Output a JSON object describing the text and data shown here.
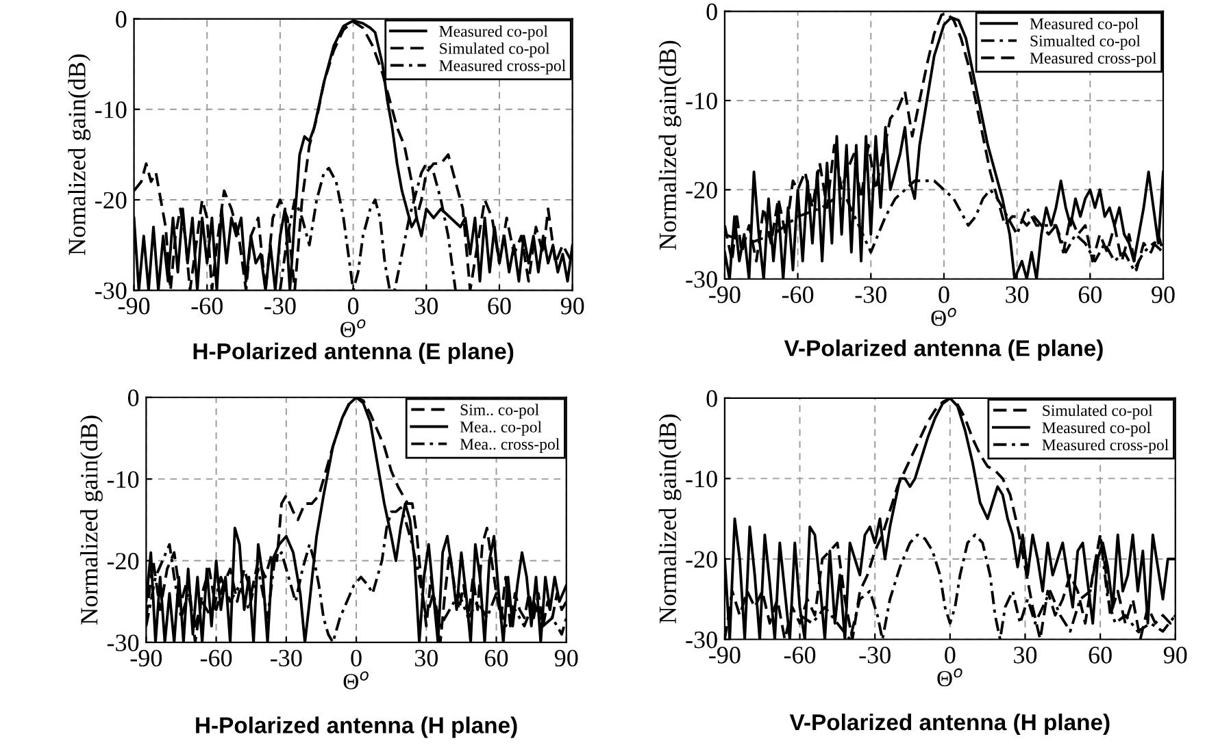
{
  "chart_data": [
    {
      "type": "line",
      "title": "H-Polarized antenna (E plane)",
      "xlabel": "Θ$^{o}$",
      "ylabel": "Nomalized gain(dB)",
      "xlim": [
        -90,
        90
      ],
      "ylim": [
        -30,
        0
      ],
      "xticks": [
        -90,
        -60,
        -30,
        0,
        30,
        60,
        90
      ],
      "yticks": [
        -30,
        -20,
        -10,
        0
      ],
      "grid": true,
      "legend": "top right",
      "series": [
        {
          "name": "Measured co-pol",
          "color": "#000000",
          "line_style": "solid",
          "x": [
            -90,
            -88,
            -86,
            -84,
            -82,
            -80,
            -78,
            -76,
            -74,
            -72,
            -70,
            -68,
            -66,
            -64,
            -62,
            -60,
            -58,
            -56,
            -54,
            -52,
            -50,
            -48,
            -46,
            -44,
            -42,
            -40,
            -38,
            -36,
            -34,
            -32,
            -30,
            -28,
            -26,
            -24,
            -22,
            -20,
            -18,
            -16,
            -12,
            -8,
            -4,
            0,
            4,
            7,
            9,
            12,
            14,
            16,
            18,
            20,
            22,
            24,
            26,
            28,
            30,
            33,
            36,
            40,
            44,
            46,
            48,
            50,
            52,
            54,
            56,
            58,
            60,
            62,
            64,
            66,
            68,
            70,
            72,
            74,
            76,
            78,
            80,
            82,
            84,
            86,
            88,
            90
          ],
          "values": [
            -22,
            -30,
            -24,
            -30,
            -23,
            -30,
            -24,
            -29,
            -22,
            -28,
            -21,
            -27,
            -22,
            -30,
            -22,
            -27,
            -22,
            -30,
            -21,
            -27,
            -22,
            -24,
            -22,
            -29,
            -24,
            -27,
            -26,
            -30,
            -25,
            -30,
            -24,
            -21,
            -30,
            -22,
            -15,
            -13,
            -13.5,
            -12,
            -7,
            -3,
            -0.8,
            -0.2,
            -0.5,
            -1,
            -1.5,
            -5,
            -9,
            -12,
            -16,
            -19,
            -21,
            -23,
            -22,
            -24,
            -21,
            -22,
            -21,
            -22,
            -23,
            -22,
            -26,
            -22,
            -29,
            -22,
            -28,
            -23,
            -27,
            -24,
            -28,
            -25,
            -29,
            -24,
            -27,
            -24,
            -28,
            -24,
            -27,
            -25,
            -28,
            -26,
            -29,
            -25
          ]
        },
        {
          "name": "Simulated co-pol",
          "color": "#000000",
          "line_style": "dashed",
          "x": [
            -90,
            -87,
            -85,
            -83,
            -81,
            -79,
            -77,
            -75,
            -73,
            -71,
            -69,
            -67,
            -65,
            -62,
            -60,
            -58,
            -56,
            -53,
            -50,
            -47,
            -44,
            -42,
            -39,
            -36,
            -33,
            -30,
            -27,
            -24,
            -21,
            -18,
            -15,
            -12,
            -8,
            -4,
            0,
            4,
            8,
            12,
            15,
            18,
            21,
            24,
            26,
            28,
            30,
            33,
            36,
            39,
            42,
            45,
            48,
            51,
            54,
            57,
            60,
            63,
            66,
            69,
            72,
            75,
            78,
            80,
            83,
            86,
            90
          ],
          "values": [
            -19,
            -18,
            -16,
            -18,
            -17,
            -20,
            -23,
            -30,
            -24,
            -21,
            -24,
            -30,
            -26,
            -20,
            -22,
            -30,
            -25,
            -19,
            -21,
            -24,
            -30,
            -24,
            -22,
            -30,
            -22,
            -20,
            -22,
            -30,
            -20,
            -14,
            -11,
            -7,
            -3.5,
            -1.2,
            -0.3,
            -1,
            -3,
            -6,
            -9,
            -12,
            -14,
            -18,
            -22,
            -20,
            -17,
            -16,
            -16,
            -15,
            -18,
            -21,
            -30,
            -25,
            -20,
            -22,
            -27,
            -22,
            -26,
            -24,
            -29,
            -23,
            -26,
            -21,
            -27,
            -25,
            -27
          ]
        },
        {
          "name": "Measured cross-pol",
          "color": "#000000",
          "line_style": "dashdot",
          "x": [
            -30,
            -27,
            -24,
            -21,
            -18,
            -15,
            -12,
            -10,
            -7,
            -4,
            -2,
            0,
            2,
            4,
            7,
            9,
            11,
            13,
            15,
            17,
            20,
            23,
            26,
            28,
            30,
            33,
            36,
            39,
            42
          ],
          "values": [
            -30,
            -24,
            -20,
            -22,
            -25,
            -20,
            -17,
            -16.5,
            -18,
            -22,
            -26,
            -30,
            -28,
            -24,
            -21,
            -20,
            -22,
            -27,
            -30,
            -30,
            -26,
            -22,
            -19,
            -17,
            -16,
            -17,
            -20,
            -24,
            -30
          ]
        }
      ]
    },
    {
      "type": "line",
      "title": "V-Polarized antenna (E plane)",
      "xlabel": "Θ$^{o}$",
      "ylabel": "Normalized gain(dB)",
      "xlim": [
        -90,
        90
      ],
      "ylim": [
        -30,
        0
      ],
      "xticks": [
        -90,
        -60,
        -30,
        0,
        30,
        60,
        90
      ],
      "yticks": [
        -30,
        -20,
        -10,
        0
      ],
      "grid": true,
      "legend": "top right",
      "series": [
        {
          "name": "Measured co-pol",
          "color": "#000000",
          "line_style": "solid",
          "x": [
            -90,
            -88,
            -86,
            -84,
            -82,
            -80,
            -78,
            -76,
            -74,
            -72,
            -70,
            -68,
            -66,
            -64,
            -62,
            -60,
            -58,
            -56,
            -54,
            -52,
            -50,
            -48,
            -46,
            -44,
            -42,
            -40,
            -38,
            -36,
            -34,
            -32,
            -30,
            -28,
            -26,
            -24,
            -22,
            -20,
            -18,
            -16,
            -14,
            -12,
            -10,
            -7,
            -4,
            0,
            3,
            6,
            9,
            12,
            15,
            18,
            21,
            24,
            27,
            29,
            32,
            34,
            36,
            38,
            40,
            42,
            44,
            46,
            48,
            50,
            52,
            54,
            56,
            58,
            60,
            62,
            64,
            66,
            68,
            70,
            72,
            74,
            76,
            78,
            80,
            82,
            84,
            86,
            88,
            90
          ],
          "values": [
            -27,
            -30,
            -23,
            -28,
            -25,
            -30,
            -18,
            -25,
            -30,
            -21,
            -28,
            -22,
            -30,
            -22,
            -29,
            -20,
            -28,
            -19,
            -26,
            -18,
            -28,
            -17,
            -26,
            -14,
            -25,
            -15,
            -27,
            -15,
            -28,
            -14,
            -25,
            -14,
            -22,
            -13,
            -20,
            -18,
            -16,
            -13,
            -19,
            -21,
            -15,
            -10,
            -5,
            -1.5,
            -0.7,
            -1,
            -3,
            -7,
            -11,
            -15,
            -18,
            -21,
            -25,
            -30,
            -28,
            -30,
            -27,
            -30,
            -25,
            -22,
            -24,
            -22,
            -19,
            -22,
            -24,
            -21,
            -23,
            -21,
            -20,
            -22,
            -20,
            -23,
            -22,
            -24,
            -22,
            -25,
            -26,
            -28,
            -25,
            -22,
            -18,
            -22,
            -26,
            -18
          ]
        },
        {
          "name": "Simualted co-pol",
          "color": "#000000",
          "line_style": "dashdot",
          "x": [
            -90,
            -80,
            -70,
            -60,
            -50,
            -45,
            -40,
            -35,
            -30,
            -27,
            -24,
            -20,
            -16,
            -12,
            -8,
            -4,
            0,
            4,
            8,
            10,
            13,
            16,
            19,
            22,
            26,
            30,
            34,
            38,
            42,
            46,
            50,
            54,
            58,
            62,
            66,
            70,
            74,
            78,
            82,
            86,
            90
          ],
          "values": [
            -25,
            -26,
            -25,
            -23,
            -22,
            -21,
            -21,
            -24,
            -27,
            -25,
            -23,
            -21,
            -20,
            -19,
            -19,
            -19,
            -20,
            -21,
            -23,
            -24,
            -23,
            -21,
            -20,
            -21,
            -23,
            -25,
            -22,
            -24,
            -24,
            -24,
            -27,
            -25,
            -26,
            -28,
            -26,
            -28,
            -27,
            -29,
            -27,
            -26,
            -27
          ]
        },
        {
          "name": "Measured cross-pol",
          "color": "#000000",
          "line_style": "dashed",
          "x": [
            -90,
            -87,
            -85,
            -83,
            -80,
            -77,
            -74,
            -71,
            -68,
            -65,
            -62,
            -60,
            -57,
            -54,
            -51,
            -48,
            -45,
            -42,
            -40,
            -37,
            -34,
            -31,
            -28,
            -25,
            -22,
            -19,
            -16,
            -13,
            -10,
            -7,
            -4,
            -1,
            1,
            4,
            7,
            10,
            13,
            16,
            19,
            22,
            25,
            28,
            31,
            34,
            37,
            40,
            43,
            46,
            49,
            52,
            55,
            58,
            61,
            64,
            67,
            70,
            73,
            76,
            79,
            82,
            85,
            88,
            90
          ],
          "values": [
            -24,
            -28,
            -23,
            -27,
            -24,
            -28,
            -22,
            -26,
            -21,
            -25,
            -19,
            -20,
            -18,
            -22,
            -17,
            -22,
            -15,
            -20,
            -18,
            -16,
            -21,
            -15,
            -20,
            -16,
            -12,
            -11,
            -9,
            -14,
            -10,
            -6,
            -2.5,
            -0.4,
            -0.2,
            -1,
            -3,
            -6,
            -10,
            -14,
            -18,
            -21,
            -24,
            -23,
            -23,
            -24,
            -23,
            -24,
            -25,
            -24,
            -27,
            -23,
            -25,
            -24,
            -28,
            -25,
            -27,
            -24,
            -28,
            -25,
            -29,
            -26,
            -27,
            -25,
            -27
          ]
        }
      ]
    },
    {
      "type": "line",
      "title": "H-Polarized antenna (H plane)",
      "xlabel": "Θ$^{o}$",
      "ylabel": "Normalized gain(dB)",
      "xlim": [
        -90,
        90
      ],
      "ylim": [
        -30,
        0
      ],
      "xticks": [
        -90,
        -60,
        -30,
        0,
        30,
        60,
        90
      ],
      "yticks": [
        -30,
        -20,
        -10,
        0
      ],
      "grid": true,
      "legend": "top right",
      "series": [
        {
          "name": "Sim.. co-pol",
          "color": "#000000",
          "line_style": "dashed",
          "x": [
            -90,
            -87,
            -84,
            -81,
            -78,
            -75,
            -72,
            -69,
            -66,
            -63,
            -60,
            -57,
            -54,
            -51,
            -48,
            -45,
            -42,
            -39,
            -36,
            -34,
            -32,
            -30,
            -27,
            -25,
            -22,
            -19,
            -16,
            -13,
            -10,
            -6,
            -3,
            0,
            3,
            6,
            9,
            12,
            15,
            18,
            20,
            22,
            24,
            26,
            28,
            30,
            32,
            34,
            36,
            38,
            40,
            42,
            44,
            46,
            48,
            50,
            52,
            54,
            56,
            58,
            60,
            62,
            64,
            66,
            68,
            70,
            72,
            74,
            76,
            78,
            80,
            82,
            84,
            86,
            88,
            90
          ],
          "values": [
            -27,
            -20,
            -26,
            -21,
            -19,
            -25,
            -22,
            -30,
            -24,
            -21,
            -26,
            -23,
            -21,
            -25,
            -21,
            -24,
            -20,
            -22,
            -19,
            -20,
            -13,
            -12,
            -14,
            -15,
            -13,
            -13,
            -12,
            -9,
            -6,
            -2.5,
            -0.7,
            0,
            -0.4,
            -2,
            -4,
            -6,
            -9,
            -11,
            -12,
            -13,
            -13,
            -17,
            -23,
            -28,
            -22,
            -26,
            -30,
            -24,
            -19,
            -23,
            -26,
            -23,
            -27,
            -22,
            -26,
            -18,
            -16,
            -20,
            -24,
            -27,
            -22,
            -28,
            -24,
            -26,
            -27,
            -24,
            -27,
            -24,
            -28,
            -25,
            -27,
            -24,
            -26,
            -25
          ]
        },
        {
          "name": "Mea.. co-pol",
          "color": "#000000",
          "line_style": "solid",
          "x": [
            -90,
            -88,
            -86,
            -84,
            -82,
            -80,
            -78,
            -76,
            -74,
            -72,
            -70,
            -68,
            -66,
            -64,
            -62,
            -60,
            -58,
            -56,
            -54,
            -52,
            -50,
            -48,
            -46,
            -44,
            -42,
            -40,
            -38,
            -36,
            -33,
            -30,
            -27,
            -24,
            -22,
            -20,
            -17,
            -14,
            -10,
            -6,
            -3,
            0,
            3,
            6,
            9,
            12,
            15,
            17,
            19,
            21,
            23,
            25,
            27,
            29,
            31,
            33,
            35,
            37,
            39,
            41,
            43,
            45,
            47,
            49,
            51,
            53,
            55,
            57,
            59,
            61,
            63,
            65,
            67,
            69,
            71,
            73,
            75,
            77,
            79,
            81,
            83,
            85,
            87,
            90
          ],
          "values": [
            -25,
            -19,
            -30,
            -22,
            -30,
            -24,
            -30,
            -22,
            -30,
            -21,
            -29,
            -22,
            -30,
            -21,
            -28,
            -20,
            -26,
            -22,
            -30,
            -16,
            -18,
            -26,
            -22,
            -30,
            -18,
            -22,
            -30,
            -20,
            -18,
            -17,
            -19,
            -24,
            -30,
            -25,
            -17,
            -12,
            -6,
            -2.5,
            -0.8,
            0,
            -0.7,
            -3,
            -8,
            -13,
            -17,
            -20,
            -16,
            -13,
            -15,
            -20,
            -30,
            -22,
            -18,
            -24,
            -30,
            -19,
            -17,
            -21,
            -26,
            -19,
            -24,
            -30,
            -18,
            -22,
            -30,
            -20,
            -17,
            -24,
            -30,
            -22,
            -28,
            -23,
            -19,
            -22,
            -28,
            -22,
            -30,
            -22,
            -26,
            -22,
            -25,
            -23
          ]
        },
        {
          "name": "Mea.. cross-pol",
          "color": "#000000",
          "line_style": "dashdot",
          "x": [
            -90,
            -86,
            -83,
            -80,
            -78,
            -75,
            -72,
            -69,
            -66,
            -62,
            -58,
            -54,
            -50,
            -46,
            -42,
            -38,
            -35,
            -32,
            -29,
            -26,
            -23,
            -20,
            -18,
            -16,
            -14,
            -12,
            -10,
            -7,
            -4,
            -1,
            2,
            5,
            7,
            9,
            11,
            13,
            15,
            17,
            19,
            21,
            24,
            27,
            30,
            33,
            36,
            40,
            44,
            48,
            52,
            56,
            60,
            64,
            68,
            72,
            76,
            80,
            84,
            88,
            90
          ],
          "values": [
            -28,
            -22,
            -20,
            -18,
            -22,
            -27,
            -24,
            -28,
            -25,
            -27,
            -22,
            -25,
            -23,
            -26,
            -21,
            -27,
            -20,
            -19,
            -22,
            -25,
            -21,
            -18,
            -20,
            -23,
            -27,
            -29,
            -30,
            -27,
            -25,
            -23,
            -22,
            -23,
            -24,
            -22,
            -20,
            -16,
            -14,
            -14,
            -13.5,
            -15,
            -18,
            -22,
            -27,
            -24,
            -28,
            -26,
            -24,
            -27,
            -25,
            -27,
            -24,
            -28,
            -26,
            -28,
            -25,
            -28,
            -27,
            -29,
            -27
          ]
        }
      ]
    },
    {
      "type": "line",
      "title": "V-Polarized antenna (H plane)",
      "xlabel": "Θ$^{o}$",
      "ylabel": "Normalized gain(dB)",
      "xlim": [
        -90,
        90
      ],
      "ylim": [
        -30,
        0
      ],
      "xticks": [
        -90,
        -60,
        -30,
        0,
        30,
        60,
        90
      ],
      "yticks": [
        -30,
        -20,
        -10,
        0
      ],
      "grid": true,
      "legend": "top right",
      "series": [
        {
          "name": "Simulated co-pol",
          "color": "#000000",
          "line_style": "dashed",
          "x": [
            -90,
            -87,
            -84,
            -81,
            -78,
            -75,
            -72,
            -69,
            -66,
            -63,
            -60,
            -57,
            -54,
            -51,
            -48,
            -45,
            -42,
            -39,
            -36,
            -33,
            -30,
            -27,
            -24,
            -21,
            -18,
            -15,
            -12,
            -9,
            -6,
            -3,
            0,
            3,
            6,
            9,
            12,
            15,
            18,
            21,
            24,
            27,
            30,
            33,
            36,
            39,
            42,
            45,
            48,
            51,
            54,
            57,
            60,
            62,
            64,
            67,
            70,
            73,
            76,
            79,
            82,
            85,
            88,
            90
          ],
          "values": [
            -30,
            -24,
            -27,
            -24,
            -26,
            -24,
            -28,
            -25,
            -30,
            -26,
            -28,
            -25,
            -27,
            -20,
            -19,
            -18,
            -25,
            -30,
            -24,
            -22,
            -19,
            -17,
            -14,
            -11,
            -9,
            -7,
            -5,
            -3,
            -1.5,
            -0.5,
            0,
            -0.8,
            -2.5,
            -5,
            -7,
            -8.5,
            -9,
            -10,
            -12,
            -16,
            -21,
            -26,
            -30,
            -24,
            -27,
            -25,
            -22,
            -24,
            -28,
            -22,
            -17,
            -21,
            -27,
            -24,
            -28,
            -25,
            -30,
            -26,
            -28,
            -27,
            -28,
            -27
          ]
        },
        {
          "name": "Measured co-pol",
          "color": "#000000",
          "line_style": "solid",
          "x": [
            -90,
            -88,
            -86,
            -84,
            -82,
            -80,
            -78,
            -76,
            -74,
            -72,
            -70,
            -68,
            -66,
            -64,
            -62,
            -60,
            -58,
            -56,
            -54,
            -52,
            -50,
            -48,
            -46,
            -44,
            -42,
            -40,
            -38,
            -36,
            -34,
            -32,
            -30,
            -28,
            -26,
            -24,
            -22,
            -20,
            -18,
            -16,
            -14,
            -12,
            -9,
            -6,
            -3,
            0,
            3,
            6,
            9,
            12,
            15,
            17,
            19,
            21,
            23,
            25,
            27,
            29,
            31,
            33,
            35,
            37,
            39,
            41,
            43,
            45,
            47,
            49,
            51,
            53,
            55,
            57,
            59,
            61,
            63,
            65,
            67,
            69,
            71,
            73,
            75,
            77,
            79,
            81,
            83,
            85,
            87,
            90
          ],
          "values": [
            -20,
            -30,
            -15,
            -20,
            -30,
            -16,
            -22,
            -30,
            -17,
            -23,
            -30,
            -18,
            -24,
            -30,
            -18,
            -26,
            -30,
            -16,
            -17,
            -23,
            -30,
            -19,
            -28,
            -22,
            -30,
            -18,
            -20,
            -22,
            -17,
            -16,
            -18,
            -15,
            -20,
            -16,
            -13,
            -10,
            -10,
            -11,
            -10,
            -8,
            -5,
            -2.5,
            -0.7,
            0,
            -1,
            -4,
            -8,
            -13,
            -15,
            -13,
            -11,
            -12,
            -15,
            -17,
            -21,
            -17,
            -22,
            -17,
            -20,
            -24,
            -18,
            -22,
            -20,
            -18,
            -22,
            -26,
            -19,
            -18,
            -23,
            -28,
            -20,
            -18,
            -21,
            -26,
            -17,
            -24,
            -22,
            -17,
            -24,
            -19,
            -28,
            -17,
            -21,
            -25,
            -20,
            -20
          ]
        },
        {
          "name": "Measured cross-pol",
          "color": "#000000",
          "line_style": "dashdot",
          "x": [
            -60,
            -55,
            -50,
            -45,
            -40,
            -36,
            -32,
            -29,
            -27,
            -24,
            -20,
            -16,
            -13,
            -10,
            -7,
            -4,
            -2,
            0,
            2,
            4,
            7,
            10,
            13,
            16,
            18,
            20,
            22,
            25,
            28,
            31,
            34,
            37,
            40,
            44,
            48,
            52,
            56,
            60,
            63,
            66,
            70,
            75,
            80,
            85,
            90
          ],
          "values": [
            -27,
            -28,
            -26,
            -28,
            -30,
            -25,
            -24,
            -27,
            -30,
            -25,
            -21,
            -18,
            -17,
            -17.5,
            -19,
            -22,
            -26,
            -28,
            -26,
            -22,
            -18,
            -17,
            -18,
            -22,
            -27,
            -30,
            -26,
            -24,
            -28,
            -25,
            -28,
            -26,
            -24,
            -27,
            -29,
            -25,
            -24,
            -17,
            -25,
            -28,
            -27,
            -29,
            -28,
            -29,
            -27
          ]
        }
      ]
    }
  ]
}
